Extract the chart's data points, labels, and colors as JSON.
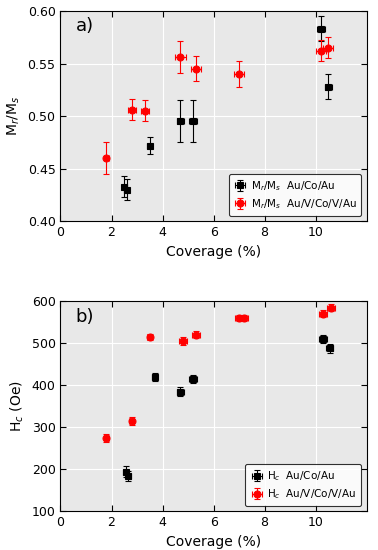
{
  "panel_a": {
    "black_x": [
      2.5,
      2.6,
      3.5,
      4.7,
      5.2,
      10.2,
      10.5
    ],
    "black_y": [
      0.433,
      0.43,
      0.472,
      0.495,
      0.495,
      0.583,
      0.528
    ],
    "black_xerr": [
      0.1,
      0.1,
      0.1,
      0.15,
      0.15,
      0.15,
      0.15
    ],
    "black_yerr": [
      0.01,
      0.01,
      0.008,
      0.02,
      0.02,
      0.012,
      0.012
    ],
    "red_x": [
      1.8,
      2.8,
      3.3,
      4.7,
      5.3,
      7.0,
      10.2,
      10.5
    ],
    "red_y": [
      0.46,
      0.506,
      0.505,
      0.556,
      0.545,
      0.54,
      0.562,
      0.565
    ],
    "red_xerr": [
      0.1,
      0.15,
      0.15,
      0.2,
      0.2,
      0.2,
      0.2,
      0.2
    ],
    "red_yerr": [
      0.015,
      0.01,
      0.01,
      0.015,
      0.012,
      0.012,
      0.01,
      0.01
    ],
    "ylabel": "M$_r$/M$_s$",
    "ylim": [
      0.4,
      0.6
    ],
    "yticks": [
      0.4,
      0.45,
      0.5,
      0.55,
      0.6
    ],
    "legend1": "M$_r$/M$_s$  Au/Co/Au",
    "legend2": "M$_r$/M$_s$  Au/V/Co/V/Au",
    "label": "a)"
  },
  "panel_b": {
    "black_x": [
      2.55,
      2.65,
      3.7,
      4.7,
      5.2,
      10.3,
      10.55
    ],
    "black_y": [
      195,
      185,
      420,
      385,
      415,
      510,
      488
    ],
    "black_xerr": [
      0.1,
      0.1,
      0.1,
      0.15,
      0.15,
      0.15,
      0.15
    ],
    "black_yerr": [
      12,
      12,
      10,
      10,
      10,
      10,
      10
    ],
    "red_x": [
      1.8,
      2.8,
      3.5,
      4.8,
      5.3,
      7.0,
      7.2,
      10.3,
      10.6
    ],
    "red_y": [
      275,
      315,
      515,
      505,
      520,
      560,
      560,
      570,
      585
    ],
    "red_xerr": [
      0.1,
      0.1,
      0.1,
      0.15,
      0.15,
      0.15,
      0.15,
      0.15,
      0.15
    ],
    "red_yerr": [
      10,
      10,
      8,
      10,
      8,
      8,
      8,
      8,
      8
    ],
    "ylabel": "H$_c$ (Oe)",
    "ylim": [
      100,
      600
    ],
    "yticks": [
      100,
      200,
      300,
      400,
      500,
      600
    ],
    "legend1": "H$_c$  Au/Co/Au",
    "legend2": "H$_c$  Au/V/Co/V/Au",
    "label": "b)"
  },
  "xlabel": "Coverage (%)",
  "xlim": [
    0,
    12
  ],
  "xticks": [
    0,
    2,
    4,
    6,
    8,
    10
  ],
  "black_color": "#000000",
  "red_color": "#ff0000",
  "bg_color": "#e8e8e8",
  "fig_bg": "#ffffff"
}
